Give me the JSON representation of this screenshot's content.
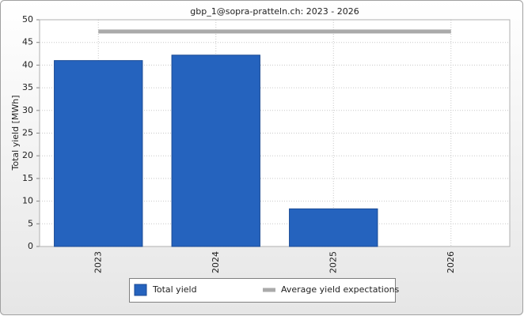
{
  "chart_data": {
    "type": "bar",
    "title": "gbp_1@sopra-pratteln.ch: 2023 - 2026",
    "y_label": "Total yield [MWh]",
    "categories": [
      "2023",
      "2024",
      "2025",
      "2026"
    ],
    "series": [
      {
        "name": "Total yield",
        "color": "#2563be",
        "type": "bar",
        "values": [
          41,
          42.2,
          8.3,
          null
        ]
      },
      {
        "name": "Average yield expectations",
        "color": "#aaaaaa",
        "type": "line",
        "values": [
          47.4,
          47.4,
          47.4,
          47.4
        ]
      }
    ],
    "ylim": [
      0,
      50
    ],
    "yticks": [
      0,
      5,
      10,
      15,
      20,
      25,
      30,
      35,
      40,
      45,
      50
    ],
    "grid": true
  }
}
